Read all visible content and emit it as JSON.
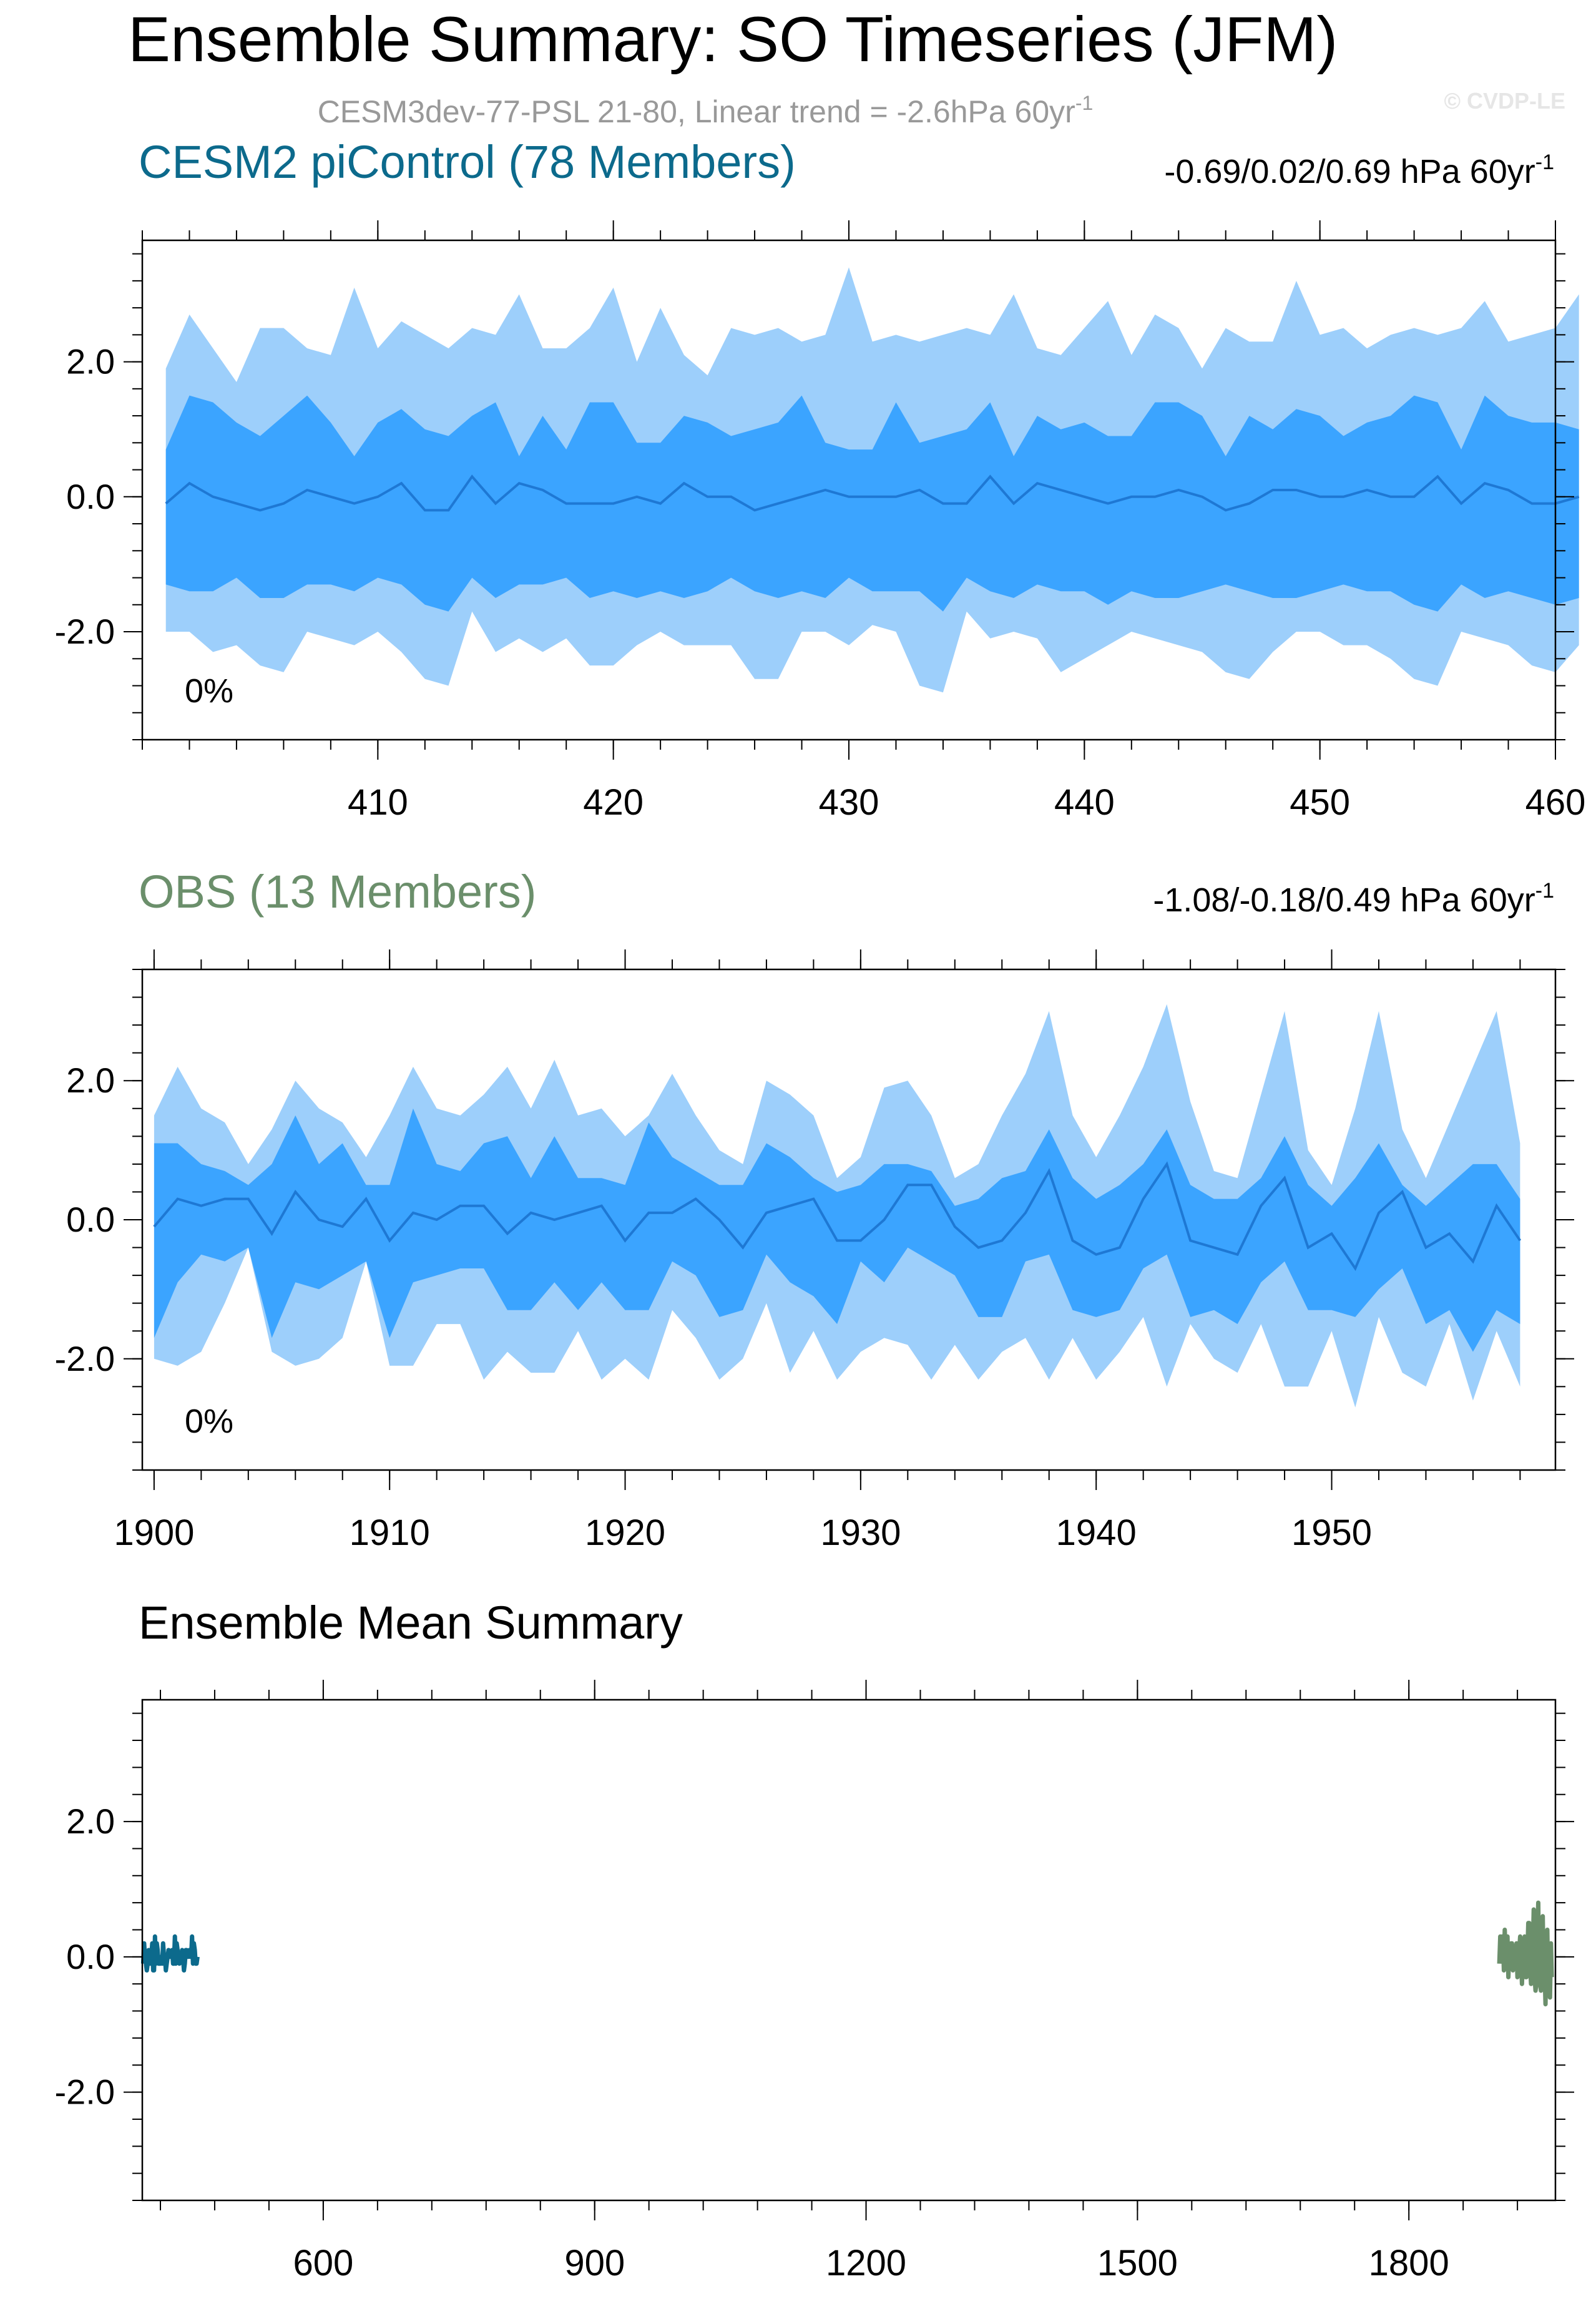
{
  "title": "Ensemble Summary: SO Timeseries (JFM)",
  "subtitle": "CESM3dev-77-PSL 21-80, Linear trend = -2.6hPa 60yr",
  "subtitle_sup": "-1",
  "watermark": "© CVDP-LE",
  "colors": {
    "band_outer": "#9DCFFB",
    "band_inner": "#3BA4FF",
    "mean_line": "#1E78D4",
    "cesm": "#0C6A8C",
    "obs": "#6B8F6B",
    "text": "#000000",
    "subtitle": "#999999"
  },
  "chart_data": [
    {
      "type": "area",
      "name": "CESM2 piControl",
      "title": "CESM2 piControl (78 Members)",
      "stats": "-0.69/0.02/0.69 hPa 60yr",
      "stats_sup": "-1",
      "pct_label": "0%",
      "xlim": [
        400,
        460
      ],
      "ylim": [
        -3.6,
        3.8
      ],
      "x_start": 401,
      "xticks": [
        410,
        420,
        430,
        440,
        450,
        460
      ],
      "yticks": [
        -2.0,
        0.0,
        2.0
      ],
      "ytick_labels": [
        "-2.0",
        "0.0",
        "2.0"
      ],
      "series": {
        "max": [
          1.9,
          2.7,
          2.2,
          1.7,
          2.5,
          2.5,
          2.2,
          2.1,
          3.1,
          2.2,
          2.6,
          2.4,
          2.2,
          2.5,
          2.4,
          3.0,
          2.2,
          2.2,
          2.5,
          3.1,
          2.0,
          2.8,
          2.1,
          1.8,
          2.5,
          2.4,
          2.5,
          2.3,
          2.4,
          3.4,
          2.3,
          2.4,
          2.3,
          2.4,
          2.5,
          2.4,
          3.0,
          2.2,
          2.1,
          2.5,
          2.9,
          2.1,
          2.7,
          2.5,
          1.9,
          2.5,
          2.3,
          2.3,
          3.2,
          2.4,
          2.5,
          2.2,
          2.4,
          2.5,
          2.4,
          2.5,
          2.9,
          2.3,
          2.4,
          2.5,
          3.0
        ],
        "p84": [
          0.7,
          1.5,
          1.4,
          1.1,
          0.9,
          1.2,
          1.5,
          1.1,
          0.6,
          1.1,
          1.3,
          1.0,
          0.9,
          1.2,
          1.4,
          0.6,
          1.2,
          0.7,
          1.4,
          1.4,
          0.8,
          0.8,
          1.2,
          1.1,
          0.9,
          1.0,
          1.1,
          1.5,
          0.8,
          0.7,
          0.7,
          1.4,
          0.8,
          0.9,
          1.0,
          1.4,
          0.6,
          1.2,
          1.0,
          1.1,
          0.9,
          0.9,
          1.4,
          1.4,
          1.2,
          0.6,
          1.2,
          1.0,
          1.3,
          1.2,
          0.9,
          1.1,
          1.2,
          1.5,
          1.4,
          0.7,
          1.5,
          1.2,
          1.1,
          1.1,
          1.0
        ],
        "mean": [
          -0.1,
          0.2,
          0.0,
          -0.1,
          -0.2,
          -0.1,
          0.1,
          0.0,
          -0.1,
          0.0,
          0.2,
          -0.2,
          -0.2,
          0.3,
          -0.1,
          0.2,
          0.1,
          -0.1,
          -0.1,
          -0.1,
          0.0,
          -0.1,
          0.2,
          0.0,
          0.0,
          -0.2,
          -0.1,
          0.0,
          0.1,
          0.0,
          0.0,
          0.0,
          0.1,
          -0.1,
          -0.1,
          0.3,
          -0.1,
          0.2,
          0.1,
          0.0,
          -0.1,
          0.0,
          0.0,
          0.1,
          0.0,
          -0.2,
          -0.1,
          0.1,
          0.1,
          0.0,
          0.0,
          0.1,
          0.0,
          0.0,
          0.3,
          -0.1,
          0.2,
          0.1,
          -0.1,
          -0.1,
          0.0
        ],
        "p16": [
          -1.3,
          -1.4,
          -1.4,
          -1.2,
          -1.5,
          -1.5,
          -1.3,
          -1.3,
          -1.4,
          -1.2,
          -1.3,
          -1.6,
          -1.7,
          -1.2,
          -1.5,
          -1.3,
          -1.3,
          -1.2,
          -1.5,
          -1.4,
          -1.5,
          -1.4,
          -1.5,
          -1.4,
          -1.2,
          -1.4,
          -1.5,
          -1.4,
          -1.5,
          -1.2,
          -1.4,
          -1.4,
          -1.4,
          -1.7,
          -1.2,
          -1.4,
          -1.5,
          -1.3,
          -1.4,
          -1.4,
          -1.6,
          -1.4,
          -1.5,
          -1.5,
          -1.4,
          -1.3,
          -1.4,
          -1.5,
          -1.5,
          -1.4,
          -1.3,
          -1.4,
          -1.4,
          -1.6,
          -1.7,
          -1.3,
          -1.5,
          -1.4,
          -1.5,
          -1.6,
          -1.5
        ],
        "min": [
          -2.0,
          -2.0,
          -2.3,
          -2.2,
          -2.5,
          -2.6,
          -2.0,
          -2.1,
          -2.2,
          -2.0,
          -2.3,
          -2.7,
          -2.8,
          -1.7,
          -2.3,
          -2.1,
          -2.3,
          -2.1,
          -2.5,
          -2.5,
          -2.2,
          -2.0,
          -2.2,
          -2.2,
          -2.2,
          -2.7,
          -2.7,
          -2.0,
          -2.0,
          -2.2,
          -1.9,
          -2.0,
          -2.8,
          -2.9,
          -1.7,
          -2.1,
          -2.0,
          -2.1,
          -2.6,
          -2.4,
          -2.2,
          -2.0,
          -2.1,
          -2.2,
          -2.3,
          -2.6,
          -2.7,
          -2.3,
          -2.0,
          -2.0,
          -2.2,
          -2.2,
          -2.4,
          -2.7,
          -2.8,
          -2.0,
          -2.1,
          -2.2,
          -2.5,
          -2.6,
          -2.2
        ]
      }
    },
    {
      "type": "area",
      "name": "OBS",
      "title": "OBS (13 Members)",
      "stats": "-1.08/-0.18/0.49 hPa 60yr",
      "stats_sup": "-1",
      "pct_label": "0%",
      "xlim": [
        1899.5,
        1959.5
      ],
      "ylim": [
        -3.6,
        3.6
      ],
      "x_start": 1900,
      "xticks": [
        1900,
        1910,
        1920,
        1930,
        1940,
        1950
      ],
      "yticks": [
        -2.0,
        0.0,
        2.0
      ],
      "ytick_labels": [
        "-2.0",
        "0.0",
        "2.0"
      ],
      "series": {
        "max": [
          1.5,
          2.2,
          1.6,
          1.4,
          0.8,
          1.3,
          2.0,
          1.6,
          1.4,
          0.9,
          1.5,
          2.2,
          1.6,
          1.5,
          1.8,
          2.2,
          1.6,
          2.3,
          1.5,
          1.6,
          1.2,
          1.5,
          2.1,
          1.5,
          1.0,
          0.8,
          2.0,
          1.8,
          1.5,
          0.6,
          0.9,
          1.9,
          2.0,
          1.5,
          0.6,
          0.8,
          1.5,
          2.1,
          3.0,
          1.5,
          0.9,
          1.5,
          2.2,
          3.1,
          1.7,
          0.7,
          0.6,
          1.8,
          3.0,
          1.0,
          0.5,
          1.6,
          3.0,
          1.3,
          0.6,
          1.4,
          2.2,
          3.0,
          1.1
        ],
        "p84": [
          1.1,
          1.1,
          0.8,
          0.7,
          0.5,
          0.8,
          1.5,
          0.8,
          1.1,
          0.5,
          0.5,
          1.6,
          0.8,
          0.7,
          1.1,
          1.2,
          0.6,
          1.2,
          0.6,
          0.6,
          0.5,
          1.4,
          0.9,
          0.7,
          0.5,
          0.5,
          1.1,
          0.9,
          0.6,
          0.4,
          0.5,
          0.8,
          0.8,
          0.7,
          0.2,
          0.3,
          0.6,
          0.7,
          1.3,
          0.6,
          0.3,
          0.5,
          0.8,
          1.3,
          0.5,
          0.3,
          0.3,
          0.6,
          1.2,
          0.5,
          0.2,
          0.6,
          1.1,
          0.5,
          0.2,
          0.5,
          0.8,
          0.8,
          0.3
        ],
        "mean": [
          -0.1,
          0.3,
          0.2,
          0.3,
          0.3,
          -0.2,
          0.4,
          0.0,
          -0.1,
          0.3,
          -0.3,
          0.1,
          0.0,
          0.2,
          0.2,
          -0.2,
          0.1,
          0.0,
          0.1,
          0.2,
          -0.3,
          0.1,
          0.1,
          0.3,
          0.0,
          -0.4,
          0.1,
          0.2,
          0.3,
          -0.3,
          -0.3,
          0.0,
          0.5,
          0.5,
          -0.1,
          -0.4,
          -0.3,
          0.1,
          0.7,
          -0.3,
          -0.5,
          -0.4,
          0.3,
          0.8,
          -0.3,
          -0.4,
          -0.5,
          0.2,
          0.6,
          -0.4,
          -0.2,
          -0.7,
          0.1,
          0.4,
          -0.4,
          -0.2,
          -0.6,
          0.2,
          -0.3
        ],
        "p16": [
          -1.7,
          -0.9,
          -0.5,
          -0.6,
          -0.4,
          -1.7,
          -0.9,
          -1.0,
          -0.8,
          -0.6,
          -1.7,
          -0.9,
          -0.8,
          -0.7,
          -0.7,
          -1.3,
          -1.3,
          -0.9,
          -1.3,
          -0.9,
          -1.3,
          -1.3,
          -0.6,
          -0.8,
          -1.4,
          -1.3,
          -0.5,
          -0.9,
          -1.1,
          -1.5,
          -0.6,
          -0.9,
          -0.4,
          -0.6,
          -0.8,
          -1.4,
          -1.4,
          -0.6,
          -0.5,
          -1.3,
          -1.4,
          -1.3,
          -0.7,
          -0.5,
          -1.4,
          -1.3,
          -1.5,
          -0.9,
          -0.6,
          -1.3,
          -1.3,
          -1.4,
          -1.0,
          -0.7,
          -1.5,
          -1.3,
          -1.9,
          -1.3,
          -1.5
        ],
        "min": [
          -2.0,
          -2.1,
          -1.9,
          -1.2,
          -0.4,
          -1.9,
          -2.1,
          -2.0,
          -1.7,
          -0.6,
          -2.1,
          -2.1,
          -1.5,
          -1.5,
          -2.3,
          -1.9,
          -2.2,
          -2.2,
          -1.6,
          -2.3,
          -2.0,
          -2.3,
          -1.3,
          -1.7,
          -2.3,
          -2.0,
          -1.2,
          -2.2,
          -1.6,
          -2.3,
          -1.9,
          -1.7,
          -1.8,
          -2.3,
          -1.8,
          -2.3,
          -1.9,
          -1.7,
          -2.3,
          -1.7,
          -2.3,
          -1.9,
          -1.4,
          -2.4,
          -1.5,
          -2.0,
          -2.2,
          -1.5,
          -2.4,
          -2.4,
          -1.6,
          -2.7,
          -1.4,
          -2.2,
          -2.4,
          -1.5,
          -2.6,
          -1.6,
          -2.4
        ]
      }
    },
    {
      "type": "line",
      "title": "Ensemble Mean Summary",
      "xlim": [
        400,
        1962
      ],
      "ylim": [
        -3.6,
        3.8
      ],
      "xticks": [
        600,
        900,
        1200,
        1500,
        1800
      ],
      "yticks": [
        -2.0,
        0.0,
        2.0
      ],
      "ytick_labels": [
        "-2.0",
        "0.0",
        "2.0"
      ],
      "series": [
        {
          "name": "CESM2 piControl",
          "x_start": 401,
          "values": [
            -0.1,
            0.2,
            0.0,
            -0.1,
            -0.2,
            -0.1,
            0.1,
            0.0,
            -0.1,
            0.0,
            0.2,
            -0.2,
            -0.2,
            0.3,
            -0.1,
            0.2,
            0.1,
            -0.1,
            -0.1,
            -0.1,
            0.0,
            -0.1,
            0.2,
            0.0,
            0.0,
            -0.2,
            -0.1,
            0.0,
            0.1,
            0.0,
            0.0,
            0.0,
            0.1,
            -0.1,
            -0.1,
            0.3,
            -0.1,
            0.2,
            0.1,
            0.0,
            -0.1,
            0.0,
            0.0,
            0.1,
            0.0,
            -0.2,
            -0.1,
            0.1,
            0.1,
            0.0,
            0.0,
            0.1,
            0.0,
            0.0,
            0.3,
            -0.1,
            0.2,
            0.1,
            -0.1,
            -0.1,
            0.0
          ]
        },
        {
          "name": "OBS",
          "x_start": 1900,
          "values": [
            -0.1,
            0.3,
            0.2,
            0.3,
            0.3,
            -0.2,
            0.4,
            0.0,
            -0.1,
            0.3,
            -0.3,
            0.1,
            0.0,
            0.2,
            0.2,
            -0.2,
            0.1,
            0.0,
            0.1,
            0.2,
            -0.3,
            0.1,
            0.1,
            0.3,
            0.0,
            -0.4,
            0.1,
            0.2,
            0.3,
            -0.3,
            -0.3,
            0.0,
            0.5,
            0.5,
            -0.1,
            -0.4,
            -0.3,
            0.1,
            0.7,
            -0.3,
            -0.5,
            -0.4,
            0.3,
            0.8,
            -0.3,
            -0.4,
            -0.5,
            0.2,
            0.6,
            -0.4,
            -0.2,
            -0.7,
            0.1,
            0.4,
            -0.4,
            -0.2,
            -0.6,
            0.2,
            -0.3
          ]
        }
      ]
    }
  ]
}
